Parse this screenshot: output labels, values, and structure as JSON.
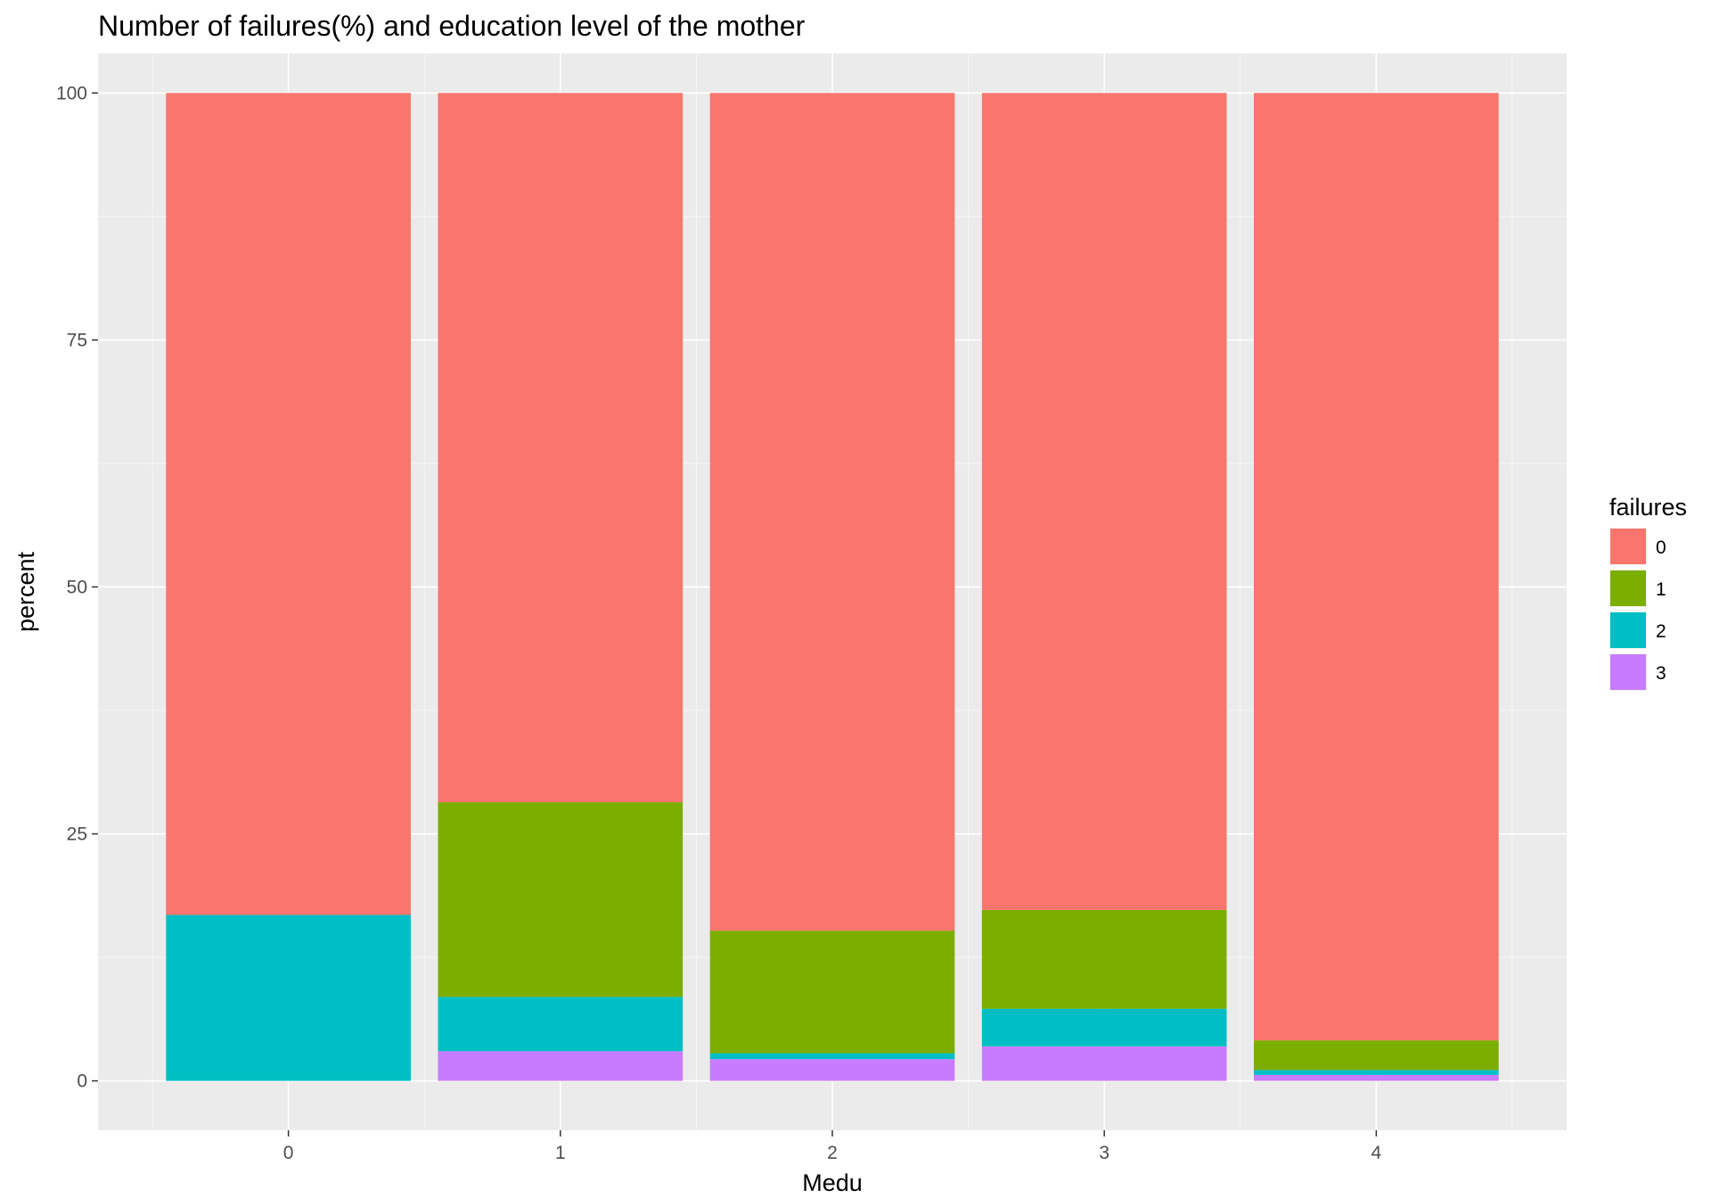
{
  "chart_data": {
    "type": "bar",
    "stacked": true,
    "title": "Number of failures(%) and education level of the mother",
    "xlabel": "Medu",
    "ylabel": "percent",
    "categories": [
      "0",
      "1",
      "2",
      "3",
      "4"
    ],
    "ylim": [
      -5,
      104
    ],
    "yticks": [
      0,
      25,
      50,
      75,
      100
    ],
    "grid": true,
    "legend_position": "right",
    "legend_title": "failures",
    "series": [
      {
        "name": "3",
        "color": "#C77CFF",
        "values": [
          0,
          3.0,
          2.2,
          3.5,
          0.6
        ]
      },
      {
        "name": "2",
        "color": "#00BFC4",
        "values": [
          16.8,
          5.5,
          0.6,
          3.8,
          0.5
        ]
      },
      {
        "name": "1",
        "color": "#7CAE00",
        "values": [
          0,
          19.7,
          12.4,
          10.0,
          3.0
        ]
      },
      {
        "name": "0",
        "color": "#F8766D",
        "values": [
          83.2,
          71.8,
          84.8,
          82.7,
          95.9
        ]
      }
    ],
    "legend_order": [
      "0",
      "1",
      "2",
      "3"
    ]
  }
}
